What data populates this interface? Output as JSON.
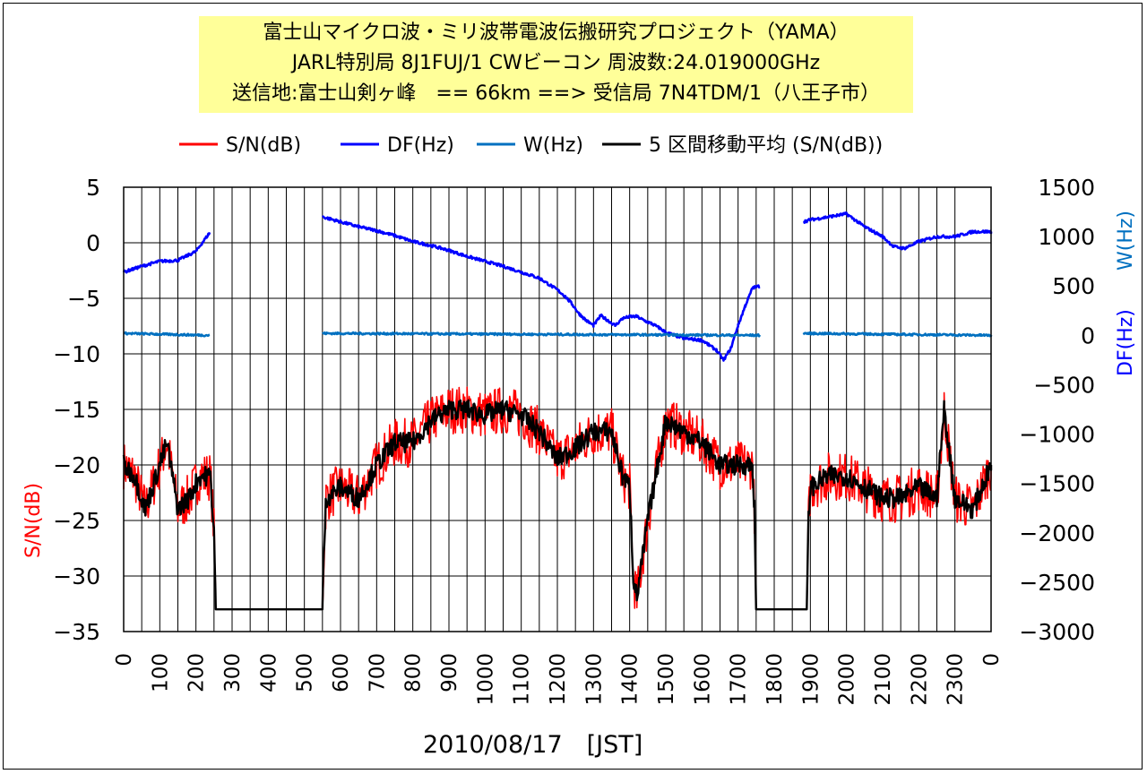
{
  "chart_data": {
    "type": "line",
    "title": [
      "富士山マイクロ波・ミリ波帯電波伝搬研究プロジェクト（YAMA）",
      "JARL特別局 8J1FUJ/1 CWビーコン 周波数:24.019000GHz",
      "送信地:富士山剣ヶ峰　== 66km ==> 受信局 7N4TDM/1（八王子市）"
    ],
    "xlabel": "2010/08/17　[JST]",
    "ylabel_left": "S/N(dB)",
    "ylabel_right_w": "W(Hz)",
    "ylabel_right_df": "DF(Hz)",
    "x_ticks": [
      "0",
      "100",
      "200",
      "300",
      "400",
      "500",
      "600",
      "700",
      "800",
      "900",
      "1000",
      "1100",
      "1200",
      "1300",
      "1400",
      "1500",
      "1600",
      "1700",
      "1800",
      "1900",
      "2000",
      "2100",
      "2200",
      "2300",
      "0"
    ],
    "y_left_ticks": [
      "5",
      "0",
      "−5",
      "−10",
      "−15",
      "−20",
      "−25",
      "−30",
      "−35"
    ],
    "y_right_ticks": [
      "1500",
      "1000",
      "500",
      "0",
      "−500",
      "−1000",
      "−1500",
      "−2000",
      "−2500",
      "−3000"
    ],
    "ylim_left": [
      -35,
      5
    ],
    "ylim_right": [
      -3000,
      1500
    ],
    "xlim_hours": [
      0,
      24
    ],
    "grid": true,
    "legend_position": "top",
    "legend": [
      "S/N(dB)",
      "DF(Hz)",
      "W(Hz)",
      "5 区間移動平均 (S/N(dB))"
    ],
    "colors": {
      "sn": "#ff0000",
      "df": "#0000ff",
      "w": "#0070c0",
      "avg": "#000000"
    },
    "series": [
      {
        "name": "S/N(dB)",
        "axis": "left",
        "x": [
          0,
          0.3,
          0.6,
          0.9,
          1.2,
          1.5,
          1.8,
          2.1,
          2.4,
          2.5,
          2.55,
          5.5,
          5.55,
          5.6,
          6,
          6.5,
          7,
          7.5,
          8,
          8.5,
          9,
          9.5,
          10,
          10.5,
          11,
          11.5,
          12,
          12.5,
          13,
          13.5,
          13.8,
          14,
          14.1,
          14.2,
          14.5,
          15,
          15.5,
          16,
          16.5,
          17,
          17.4,
          17.45,
          17.5,
          18,
          18.9,
          18.95,
          19,
          19.5,
          20,
          20.5,
          21,
          21.5,
          22,
          22.5,
          22.7,
          23,
          23.5,
          24
        ],
        "y": [
          -20,
          -21,
          -24,
          -21,
          -18,
          -24,
          -23,
          -21,
          -21,
          -26,
          -33,
          -33,
          -27,
          -23,
          -22,
          -23,
          -20,
          -18,
          -18,
          -16,
          -15,
          -15,
          -15.5,
          -15,
          -15.5,
          -17,
          -19.5,
          -18.5,
          -17,
          -17,
          -21,
          -22,
          -30,
          -32,
          -25,
          -16,
          -17,
          -18,
          -20,
          -20,
          -20,
          -24,
          -33,
          -33,
          -33,
          -25,
          -22,
          -21,
          -21,
          -22,
          -23,
          -23,
          -22,
          -23,
          -15,
          -23,
          -24,
          -20
        ],
        "noise": 2.2
      },
      {
        "name": "DF(Hz)",
        "axis": "right",
        "x": [
          0,
          0.5,
          1,
          1.5,
          2,
          2.4,
          5.5,
          6,
          6.5,
          7,
          7.5,
          8,
          8.5,
          9,
          9.5,
          10,
          10.5,
          11,
          11.5,
          12,
          12.2,
          12.4,
          12.6,
          12.8,
          13,
          13.2,
          13.4,
          13.6,
          13.8,
          14,
          14.2,
          14.4,
          14.6,
          14.8,
          15,
          15.5,
          16,
          16.2,
          16.4,
          16.6,
          16.8,
          17,
          17.2,
          17.4,
          17.6,
          18.8,
          19,
          19.5,
          20,
          20.5,
          21,
          21.3,
          21.6,
          22,
          22.5,
          23,
          23.5,
          24
        ],
        "y": [
          640,
          700,
          750,
          760,
          850,
          1050,
          1200,
          1150,
          1100,
          1060,
          1010,
          950,
          910,
          860,
          800,
          750,
          700,
          640,
          580,
          460,
          400,
          320,
          220,
          150,
          100,
          200,
          150,
          100,
          170,
          190,
          190,
          150,
          120,
          80,
          30,
          -30,
          -50,
          -100,
          -150,
          -250,
          -130,
          100,
          300,
          480,
          500,
          1150,
          1170,
          1200,
          1230,
          1100,
          1000,
          900,
          880,
          950,
          1000,
          1000,
          1050,
          1050
        ],
        "gaps_after_x": [
          2.4,
          17.6
        ],
        "noise": 14
      },
      {
        "name": "W(Hz)",
        "axis": "right",
        "x": [
          0,
          2.4,
          5.5,
          17.6,
          18.8,
          24
        ],
        "y": [
          20,
          0,
          20,
          0,
          20,
          0
        ],
        "gaps_after_x": [
          2.4,
          17.6
        ],
        "noise": 10
      },
      {
        "name": "5 区間移動平均 (S/N(dB))",
        "axis": "left",
        "x": [
          0,
          0.3,
          0.6,
          0.9,
          1.2,
          1.5,
          1.8,
          2.1,
          2.4,
          2.5,
          2.55,
          5.5,
          5.55,
          5.6,
          6,
          6.5,
          7,
          7.5,
          8,
          8.5,
          9,
          9.5,
          10,
          10.5,
          11,
          11.5,
          12,
          12.5,
          13,
          13.5,
          13.8,
          14,
          14.1,
          14.2,
          14.5,
          15,
          15.5,
          16,
          16.5,
          17,
          17.4,
          17.45,
          17.5,
          18,
          18.9,
          18.95,
          19,
          19.5,
          20,
          20.5,
          21,
          21.5,
          22,
          22.5,
          22.7,
          23,
          23.5,
          24
        ],
        "y": [
          -20,
          -21,
          -24,
          -21,
          -18,
          -24,
          -23,
          -21,
          -21,
          -26,
          -33,
          -33,
          -27,
          -23,
          -22,
          -23,
          -20,
          -18,
          -18,
          -16,
          -15,
          -15,
          -15.5,
          -15,
          -15.5,
          -17,
          -19.5,
          -18.5,
          -17,
          -17,
          -21,
          -22,
          -30,
          -32,
          -25,
          -16,
          -17,
          -18,
          -20,
          -20,
          -20,
          -24,
          -33,
          -33,
          -33,
          -25,
          -22,
          -21,
          -21,
          -22,
          -23,
          -23,
          -22,
          -23,
          -15,
          -23,
          -24,
          -20
        ],
        "noise": 0.9
      }
    ]
  }
}
